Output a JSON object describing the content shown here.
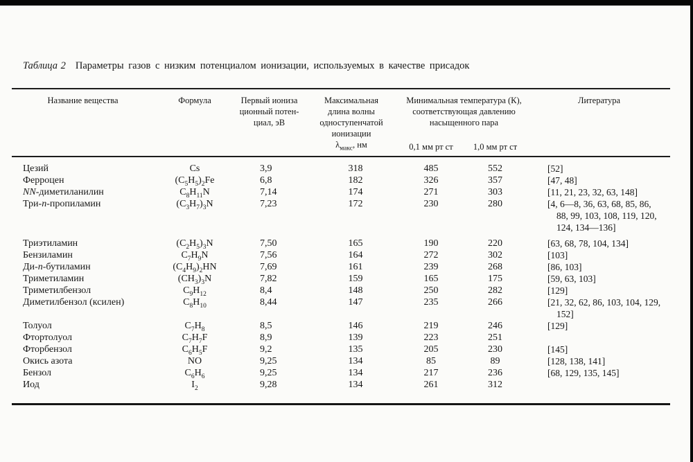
{
  "page": {
    "background": "#fbfbf9",
    "edge_color": "#070707",
    "text_color": "#161616"
  },
  "title": {
    "label": "Таблица 2",
    "text": "Параметры газов с низким потенциалом ионизации, используемых в качестве присадок"
  },
  "table": {
    "headers": {
      "name": "Название вещества",
      "formula": "Формула",
      "potential_lines": [
        "Первый иониза",
        "ционный потен-",
        "циал, эВ"
      ],
      "lambda_lines": [
        "Максимальная",
        "длина волны",
        "одноступенчатой",
        "ионизации",
        "λ_макс_, нм"
      ],
      "temp_lines": [
        "Минимальная температура (К),",
        "соответствующая давлению",
        "насыщенного пара"
      ],
      "temp_sub_01": "0,1 мм рт ст",
      "temp_sub_10": "1,0 мм рт ст",
      "literature": "Литература"
    },
    "rows": [
      {
        "name": "Цезий",
        "formula": "Cs",
        "potential": "3,9",
        "lambda": "318",
        "t01": "485",
        "t10": "552",
        "lit": [
          "[52]"
        ]
      },
      {
        "name": "Ферроцен",
        "formula": "(C_5_H_5_)_2_Fe",
        "potential": "6,8",
        "lambda": "182",
        "t01": "326",
        "t10": "357",
        "lit": [
          "[47, 48]"
        ]
      },
      {
        "name": "*NN*-диметиланилин",
        "formula": "C_8_H_11_N",
        "potential": "7,14",
        "lambda": "174",
        "t01": "271",
        "t10": "303",
        "lit": [
          "[11, 21, 23, 32, 63, 148]"
        ]
      },
      {
        "name": "Три-*n*-пропиламин",
        "formula": "(C_3_H_7_)_3_N",
        "potential": "7,23",
        "lambda": "172",
        "t01": "230",
        "t10": "280",
        "lit": [
          "[4, 6—8, 36, 63, 68, 85, 86,",
          "88, 99, 103, 108, 119, 120,",
          "124, 134—136]"
        ],
        "spacer_after": 6
      },
      {
        "name": "Триэтиламин",
        "formula": "(C_2_H_5_)_3_N",
        "potential": "7,50",
        "lambda": "165",
        "t01": "190",
        "t10": "220",
        "lit": [
          "[63, 68, 78, 104, 134]"
        ]
      },
      {
        "name": "Бензиламин",
        "formula": "C_7_H_9_N",
        "potential": "7,56",
        "lambda": "164",
        "t01": "272",
        "t10": "302",
        "lit": [
          "[103]"
        ]
      },
      {
        "name": "Ди-*n*-бутиламин",
        "formula": "(C_4_H_9_)_2_HN",
        "potential": "7,69",
        "lambda": "161",
        "t01": "239",
        "t10": "268",
        "lit": [
          "[86, 103]"
        ]
      },
      {
        "name": "Триметиламин",
        "formula": "(CH_3_)_3_N",
        "potential": "7,82",
        "lambda": "159",
        "t01": "165",
        "t10": "175",
        "lit": [
          "[59, 63, 103]"
        ]
      },
      {
        "name": "Триметилбензол",
        "formula": "C_9_H_12_",
        "potential": "8,4",
        "lambda": "148",
        "t01": "250",
        "t10": "282",
        "lit": [
          "[129]"
        ]
      },
      {
        "name": "Диметилбензол (ксилен)",
        "formula": "C_8_H_10_",
        "potential": "8,44",
        "lambda": "147",
        "t01": "235",
        "t10": "266",
        "lit": [
          "[21, 32, 62, 86, 103, 104, 129,",
          "152]"
        ]
      },
      {
        "name": "Толуол",
        "formula": "C_7_H_8_",
        "potential": "8,5",
        "lambda": "146",
        "t01": "219",
        "t10": "246",
        "lit": [
          "[129]"
        ]
      },
      {
        "name": "Фтортолуол",
        "formula": "C_7_H_7_F",
        "potential": "8,9",
        "lambda": "139",
        "t01": "223",
        "t10": "251",
        "lit": []
      },
      {
        "name": "Фторбензол",
        "formula": "C_6_H_5_F",
        "potential": "9,2",
        "lambda": "135",
        "t01": "205",
        "t10": "230",
        "lit": [
          "[145]"
        ]
      },
      {
        "name": "Окись азота",
        "formula": "NO",
        "potential": "9,25",
        "lambda": "134",
        "t01": "85",
        "t10": "89",
        "lit": [
          "[128, 138, 141]"
        ]
      },
      {
        "name": "Бензол",
        "formula": "C_6_H_6_",
        "potential": "9,25",
        "lambda": "134",
        "t01": "217",
        "t10": "236",
        "lit": [
          "[68, 129, 135, 145]"
        ]
      },
      {
        "name": "Иод",
        "formula": "I_2_",
        "potential": "9,28",
        "lambda": "134",
        "t01": "261",
        "t10": "312",
        "lit": []
      }
    ]
  }
}
